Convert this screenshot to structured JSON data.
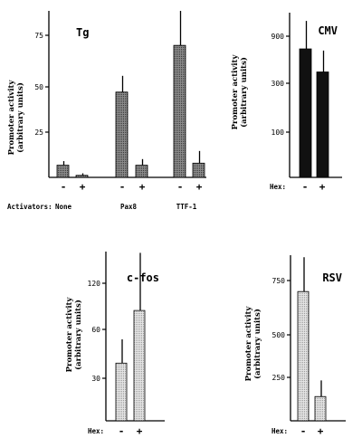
{
  "chart_data": [
    {
      "id": "tg",
      "type": "bar",
      "title": "Tg",
      "ylabel": "Promoter activity (arbitrary units)",
      "yticks": [
        25,
        50,
        75
      ],
      "ylim": [
        0,
        82
      ],
      "categories": [
        "None -",
        "None +",
        "Pax8 -",
        "Pax8 +",
        "TTF-1 -",
        "TTF-1 +"
      ],
      "values": [
        6,
        1,
        42,
        6,
        65,
        7
      ],
      "errors": [
        2,
        1,
        8,
        3,
        17,
        6
      ],
      "row_label": "Activators:",
      "groups": [
        "None",
        "Pax8",
        "TTF-1"
      ],
      "signs": [
        "-",
        "+",
        "-",
        "+",
        "-",
        "+"
      ],
      "fill": "#6a6a6a"
    },
    {
      "id": "cmv",
      "type": "bar",
      "title": "CMV",
      "ylabel": "Promoter activity (arbitrary units)",
      "yticks": [
        "100",
        "300",
        "900"
      ],
      "ylim": [
        0,
        1000
      ],
      "categories": [
        "-",
        "+"
      ],
      "values": [
        780,
        640
      ],
      "errors": [
        170,
        130
      ],
      "row_label": "Hex:",
      "signs": [
        "-",
        "+"
      ],
      "fill": "#111111"
    },
    {
      "id": "cfos",
      "type": "bar",
      "title": "c-fos",
      "ylabel": "Promoter activity (arbitrary units)",
      "yticks": [
        "30",
        "60",
        "120"
      ],
      "ylim": [
        0,
        135
      ],
      "categories": [
        "-",
        "+"
      ],
      "values": [
        46,
        88
      ],
      "errors": [
        19,
        46
      ],
      "row_label": "Hex:",
      "signs": [
        "-",
        "+"
      ],
      "fill": "#c4c4c4"
    },
    {
      "id": "rsv",
      "type": "bar",
      "title": "RSV",
      "ylabel": "Promoter activity (arbitrary units)",
      "yticks": [
        250,
        500,
        750
      ],
      "ylim": [
        0,
        820
      ],
      "categories": [
        "-",
        "+"
      ],
      "values": [
        640,
        120
      ],
      "errors": [
        170,
        80
      ],
      "row_label": "Hex:",
      "signs": [
        "-",
        "+"
      ],
      "fill": "#c4c4c4"
    }
  ]
}
